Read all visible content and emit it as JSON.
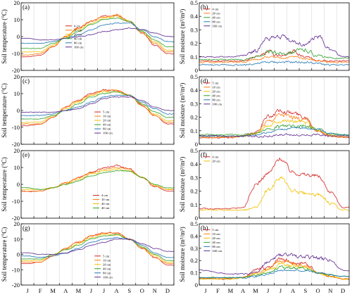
{
  "figure": {
    "months": [
      "J",
      "F",
      "M",
      "A",
      "M",
      "J",
      "J",
      "A",
      "S",
      "O",
      "N",
      "D"
    ]
  },
  "chart_data": [
    {
      "panel": "(a)",
      "type": "line",
      "ylabel": "Soil temperature (°C)",
      "ylim": [
        -20,
        20
      ],
      "yticks": [
        -20,
        -10,
        0,
        10,
        20
      ],
      "legend_position": "center",
      "series": [
        {
          "name": "4 cm",
          "color": "#d62728",
          "values": [
            -12,
            -11,
            -6,
            0,
            5,
            9,
            12,
            13,
            9,
            2,
            -5,
            -10
          ]
        },
        {
          "name": "10 cm",
          "color": "#ff7f0e",
          "values": [
            -11,
            -10,
            -6,
            0,
            5,
            9,
            12,
            13,
            9,
            2,
            -4,
            -9
          ]
        },
        {
          "name": "20 cm",
          "color": "#f2c200",
          "values": [
            -9,
            -9,
            -5,
            0,
            4,
            8,
            11,
            12,
            9,
            3,
            -3,
            -8
          ]
        },
        {
          "name": "40 cm",
          "color": "#2ca02c",
          "values": [
            -7,
            -7,
            -4,
            -1,
            3,
            7,
            10,
            11,
            9,
            3,
            -2,
            -6
          ]
        },
        {
          "name": "80 cm",
          "color": "#1f77b4",
          "values": [
            -4,
            -4,
            -3,
            -1,
            1,
            4,
            7,
            8,
            8,
            4,
            0,
            -3
          ]
        },
        {
          "name": "160 cm",
          "color": "#5e2a8f",
          "values": [
            -1,
            -2,
            -2,
            -1,
            0,
            1,
            3,
            4,
            5,
            4,
            2,
            0
          ]
        }
      ]
    },
    {
      "panel": "(b)",
      "type": "line",
      "ylabel": "Soil moisture (m³/m³)",
      "ylim": [
        0,
        0.5
      ],
      "yticks": [
        0,
        0.1,
        0.2,
        0.3,
        0.4,
        0.5
      ],
      "legend_position": "top-left",
      "series": [
        {
          "name": "4 cm",
          "color": "#d62728",
          "values": [
            0.07,
            0.07,
            0.07,
            0.07,
            0.1,
            0.13,
            0.11,
            0.14,
            0.1,
            0.07,
            0.07,
            0.07
          ]
        },
        {
          "name": "20 cm",
          "color": "#ff7f0e",
          "values": [
            0.06,
            0.06,
            0.06,
            0.06,
            0.08,
            0.1,
            0.09,
            0.1,
            0.09,
            0.07,
            0.06,
            0.06
          ]
        },
        {
          "name": "40 cm",
          "color": "#2ca02c",
          "values": [
            0.08,
            0.08,
            0.08,
            0.08,
            0.1,
            0.13,
            0.13,
            0.14,
            0.15,
            0.11,
            0.09,
            0.09
          ]
        },
        {
          "name": "80 cm",
          "color": "#1f77b4",
          "values": [
            0.04,
            0.04,
            0.04,
            0.04,
            0.05,
            0.06,
            0.06,
            0.06,
            0.06,
            0.05,
            0.04,
            0.04
          ]
        },
        {
          "name": "160 cm",
          "color": "#5e2a8f",
          "values": [
            0.1,
            0.1,
            0.1,
            0.11,
            0.14,
            0.24,
            0.25,
            0.21,
            0.19,
            0.25,
            0.16,
            0.1
          ]
        }
      ]
    },
    {
      "panel": "(c)",
      "type": "line",
      "ylabel": "Soil temperature (°C)",
      "ylim": [
        -20,
        20
      ],
      "yticks": [
        -20,
        -10,
        0,
        10,
        20
      ],
      "legend_position": "bottom-center",
      "series": [
        {
          "name": "5 cm",
          "color": "#d62728",
          "values": [
            -9,
            -8,
            -4,
            2,
            6,
            10,
            12,
            12,
            9,
            3,
            -3,
            -8
          ]
        },
        {
          "name": "10 cm",
          "color": "#ff7f0e",
          "values": [
            -8,
            -8,
            -4,
            2,
            6,
            9,
            12,
            12,
            9,
            3,
            -3,
            -7
          ]
        },
        {
          "name": "20 cm",
          "color": "#f2c200",
          "values": [
            -7,
            -7,
            -3,
            1,
            5,
            9,
            11,
            11,
            9,
            4,
            -2,
            -6
          ]
        },
        {
          "name": "40 cm",
          "color": "#2ca02c",
          "values": [
            -5,
            -5,
            -3,
            0,
            4,
            8,
            10,
            11,
            9,
            4,
            -1,
            -4
          ]
        },
        {
          "name": "80 cm",
          "color": "#1f77b4",
          "values": [
            -3,
            -3,
            -2,
            0,
            2,
            5,
            8,
            9,
            9,
            5,
            1,
            -2
          ]
        },
        {
          "name": "100 cm",
          "color": "#5e2a8f",
          "values": [
            -1,
            -1,
            -1,
            0,
            1,
            4,
            7,
            8,
            8,
            6,
            2,
            0
          ]
        }
      ]
    },
    {
      "panel": "(d)",
      "type": "line",
      "ylabel": "Soil moisture (m³/m³)",
      "ylim": [
        0,
        0.5
      ],
      "yticks": [
        0,
        0.1,
        0.2,
        0.3,
        0.4,
        0.5
      ],
      "legend_position": "top-left",
      "series": [
        {
          "name": "5 cm",
          "color": "#d62728",
          "values": [
            0.05,
            0.05,
            0.05,
            0.06,
            0.09,
            0.2,
            0.25,
            0.23,
            0.2,
            0.1,
            0.06,
            0.05
          ]
        },
        {
          "name": "10 cm",
          "color": "#ff7f0e",
          "values": [
            0.05,
            0.05,
            0.05,
            0.06,
            0.08,
            0.17,
            0.22,
            0.2,
            0.18,
            0.1,
            0.06,
            0.05
          ]
        },
        {
          "name": "20 cm",
          "color": "#f2c200",
          "values": [
            0.06,
            0.06,
            0.06,
            0.06,
            0.08,
            0.14,
            0.18,
            0.17,
            0.16,
            0.1,
            0.07,
            0.06
          ]
        },
        {
          "name": "40 cm",
          "color": "#2ca02c",
          "values": [
            0.07,
            0.07,
            0.07,
            0.07,
            0.08,
            0.11,
            0.13,
            0.14,
            0.14,
            0.11,
            0.08,
            0.07
          ]
        },
        {
          "name": "80 cm",
          "color": "#1f77b4",
          "values": [
            0.06,
            0.06,
            0.06,
            0.06,
            0.07,
            0.09,
            0.11,
            0.12,
            0.12,
            0.11,
            0.08,
            0.07
          ]
        },
        {
          "name": "100 cm",
          "color": "#5e2a8f",
          "values": [
            0.06,
            0.06,
            0.06,
            0.06,
            0.06,
            0.06,
            0.07,
            0.07,
            0.07,
            0.07,
            0.06,
            0.06
          ]
        }
      ]
    },
    {
      "panel": "(e)",
      "type": "line",
      "ylabel": "Soil temperature (°C)",
      "ylim": [
        -20,
        20
      ],
      "yticks": [
        -20,
        -10,
        0,
        10,
        20
      ],
      "legend_position": "bottom-center",
      "series": [
        {
          "name": "4 cm",
          "color": "#d62728",
          "values": [
            -4,
            -4,
            -2,
            1,
            4,
            7,
            10,
            11,
            9,
            4,
            -1,
            -4
          ]
        },
        {
          "name": "10 cm",
          "color": "#ff7f0e",
          "values": [
            -4,
            -4,
            -2,
            1,
            4,
            7,
            9,
            10,
            9,
            4,
            -1,
            -3
          ]
        },
        {
          "name": "20 cm",
          "color": "#f2c200",
          "values": [
            -3,
            -3,
            -2,
            0,
            3,
            6,
            8,
            9,
            8,
            4,
            0,
            -3
          ]
        },
        {
          "name": "40 cm",
          "color": "#2ca02c",
          "values": [
            -2,
            -3,
            -2,
            0,
            2,
            5,
            7,
            8,
            8,
            4,
            0,
            -2
          ]
        }
      ]
    },
    {
      "panel": "(f)",
      "type": "line",
      "ylabel": "Soil moisture (m³/m³)",
      "ylim": [
        0,
        0.5
      ],
      "yticks": [
        0,
        0.1,
        0.2,
        0.3,
        0.4,
        0.5
      ],
      "legend_position": "top-left",
      "series": [
        {
          "name": "4 cm",
          "color": "#d62728",
          "values": [
            0.07,
            0.07,
            0.07,
            0.08,
            0.25,
            0.33,
            0.44,
            0.34,
            0.32,
            0.31,
            0.2,
            0.08
          ]
        },
        {
          "name": "20 cm",
          "color": "#f2c200",
          "values": [
            0.06,
            0.06,
            0.06,
            0.06,
            0.08,
            0.2,
            0.3,
            0.2,
            0.18,
            0.17,
            0.12,
            0.06
          ]
        }
      ]
    },
    {
      "panel": "(g)",
      "type": "line",
      "ylabel": "Soil temperature (°C)",
      "ylim": [
        -20,
        20
      ],
      "yticks": [
        -20,
        -10,
        0,
        10,
        20
      ],
      "legend_position": "bottom-center",
      "series": [
        {
          "name": "5 cm",
          "color": "#d62728",
          "values": [
            -6,
            -5,
            -1,
            4,
            8,
            12,
            14,
            14,
            10,
            4,
            -2,
            -7
          ]
        },
        {
          "name": "10 cm",
          "color": "#ff7f0e",
          "values": [
            -5,
            -5,
            -1,
            4,
            8,
            12,
            14,
            14,
            10,
            4,
            -2,
            -6
          ]
        },
        {
          "name": "20 cm",
          "color": "#f2c200",
          "values": [
            -4,
            -4,
            0,
            3,
            7,
            11,
            13,
            13,
            10,
            5,
            -1,
            -5
          ]
        },
        {
          "name": "40 cm",
          "color": "#2ca02c",
          "values": [
            -3,
            -3,
            0,
            3,
            6,
            10,
            12,
            13,
            10,
            5,
            0,
            -4
          ]
        },
        {
          "name": "80 cm",
          "color": "#1f77b4",
          "values": [
            -1,
            -2,
            -1,
            1,
            4,
            8,
            10,
            11,
            10,
            6,
            1,
            -2
          ]
        },
        {
          "name": "160 cm",
          "color": "#5e2a8f",
          "values": [
            1,
            0,
            0,
            1,
            3,
            6,
            8,
            10,
            10,
            7,
            4,
            2
          ]
        }
      ]
    },
    {
      "panel": "(h)",
      "type": "line",
      "ylabel": "Soil moisture (m³/m³)",
      "ylim": [
        0,
        0.5
      ],
      "yticks": [
        0,
        0.1,
        0.2,
        0.3,
        0.4,
        0.5
      ],
      "legend_position": "top-left",
      "series": [
        {
          "name": "5 cm",
          "color": "#d62728",
          "values": [
            0.05,
            0.05,
            0.05,
            0.06,
            0.12,
            0.14,
            0.22,
            0.18,
            0.18,
            0.1,
            0.07,
            0.05
          ]
        },
        {
          "name": "10 cm",
          "color": "#ff7f0e",
          "values": [
            0.05,
            0.05,
            0.05,
            0.06,
            0.1,
            0.13,
            0.2,
            0.17,
            0.16,
            0.1,
            0.07,
            0.05
          ]
        },
        {
          "name": "20 cm",
          "color": "#f2c200",
          "values": [
            0.05,
            0.05,
            0.05,
            0.06,
            0.09,
            0.12,
            0.17,
            0.15,
            0.14,
            0.1,
            0.07,
            0.05
          ]
        },
        {
          "name": "40 cm",
          "color": "#2ca02c",
          "values": [
            0.06,
            0.06,
            0.06,
            0.06,
            0.08,
            0.1,
            0.14,
            0.14,
            0.13,
            0.1,
            0.08,
            0.07
          ]
        },
        {
          "name": "80 cm",
          "color": "#1f77b4",
          "values": [
            0.06,
            0.06,
            0.06,
            0.06,
            0.07,
            0.09,
            0.12,
            0.12,
            0.12,
            0.1,
            0.08,
            0.07
          ]
        },
        {
          "name": "160 cm",
          "color": "#5e2a8f",
          "values": [
            0.12,
            0.1,
            0.09,
            0.09,
            0.1,
            0.18,
            0.24,
            0.24,
            0.23,
            0.22,
            0.2,
            0.12
          ]
        }
      ]
    }
  ]
}
